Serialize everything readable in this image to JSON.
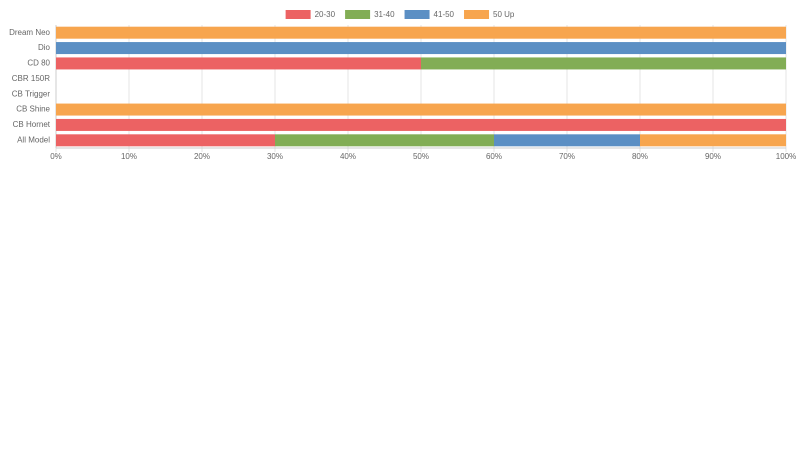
{
  "chart_data": {
    "type": "stacked-bar-horizontal",
    "categories": [
      "Dream Neo",
      "Dio",
      "CD 80",
      "CBR 150R",
      "CB Trigger",
      "CB Shine",
      "CB Hornet",
      "All Model"
    ],
    "series": [
      {
        "name": "20-30",
        "color": "#ec6263",
        "values": [
          0,
          0,
          50,
          0,
          0,
          0,
          100,
          30
        ]
      },
      {
        "name": "31-40",
        "color": "#82ad55",
        "values": [
          0,
          0,
          50,
          0,
          0,
          0,
          0,
          30
        ]
      },
      {
        "name": "41-50",
        "color": "#5b8fc4",
        "values": [
          0,
          100,
          0,
          0,
          0,
          0,
          0,
          20
        ]
      },
      {
        "name": "50 Up",
        "color": "#f7a54e",
        "values": [
          100,
          0,
          0,
          0,
          0,
          100,
          0,
          20
        ]
      }
    ],
    "xlim": [
      0,
      100
    ],
    "xticks": [
      {
        "value": 0,
        "label": "0%"
      },
      {
        "value": 10,
        "label": "10%"
      },
      {
        "value": 20,
        "label": "20%"
      },
      {
        "value": 30,
        "label": "30%"
      },
      {
        "value": 40,
        "label": "40%"
      },
      {
        "value": 50,
        "label": "50%"
      },
      {
        "value": 60,
        "label": "60%"
      },
      {
        "value": 70,
        "label": "70%"
      },
      {
        "value": 80,
        "label": "80%"
      },
      {
        "value": 90,
        "label": "90%"
      },
      {
        "value": 100,
        "label": "100%"
      }
    ],
    "grid": true,
    "legend": "top"
  }
}
